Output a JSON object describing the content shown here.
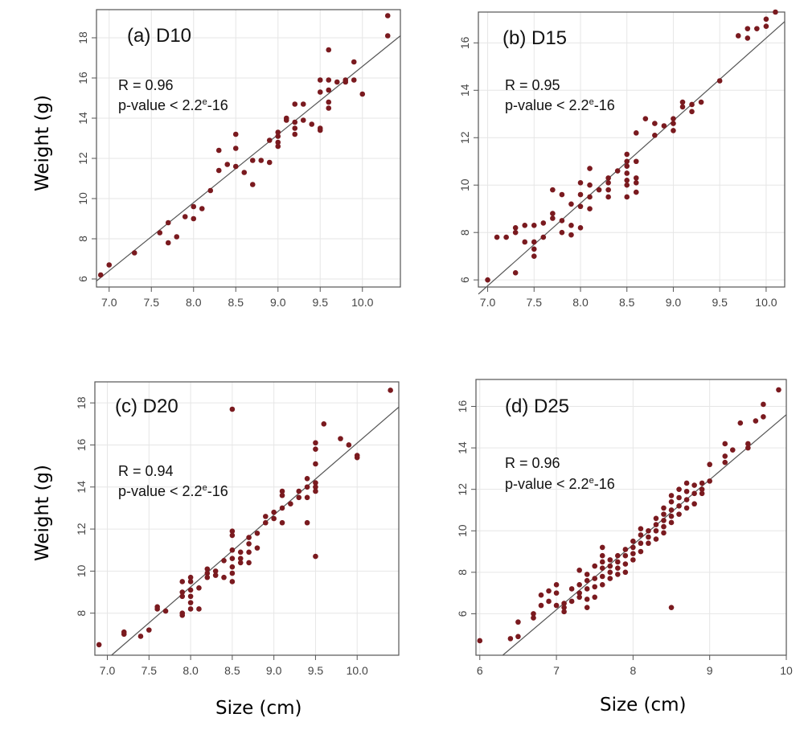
{
  "figure": {
    "ylabel": "Weight (g)",
    "xlabel": "Size (cm)"
  },
  "chart_data": [
    {
      "type": "scatter",
      "panel_label": "(a) D10",
      "stat_r": "R = 0.96",
      "stat_p_prefix": "p-value < 2.2",
      "stat_p_sup": "e",
      "stat_p_suffix": "-16",
      "xlim": [
        6.85,
        10.45
      ],
      "ylim": [
        5.6,
        19.4
      ],
      "xticks": [
        "7.0",
        "7.5",
        "8.0",
        "8.5",
        "9.0",
        "9.5",
        "10.0"
      ],
      "xtick_values": [
        7.0,
        7.5,
        8.0,
        8.5,
        9.0,
        9.5,
        10.0
      ],
      "yticks": [
        "6",
        "8",
        "10",
        "12",
        "14",
        "16",
        "18"
      ],
      "ytick_values": [
        6,
        8,
        10,
        12,
        14,
        16,
        18
      ],
      "fit_line": [
        [
          6.85,
          5.9
        ],
        [
          10.45,
          18.1
        ]
      ],
      "points": [
        [
          6.9,
          6.2
        ],
        [
          7.0,
          6.7
        ],
        [
          7.3,
          7.3
        ],
        [
          7.6,
          8.3
        ],
        [
          7.7,
          7.8
        ],
        [
          7.7,
          8.8
        ],
        [
          7.8,
          8.1
        ],
        [
          7.9,
          9.1
        ],
        [
          8.0,
          9.0
        ],
        [
          8.0,
          9.6
        ],
        [
          8.1,
          9.5
        ],
        [
          8.2,
          10.4
        ],
        [
          8.3,
          11.4
        ],
        [
          8.3,
          12.4
        ],
        [
          8.4,
          11.7
        ],
        [
          8.5,
          11.6
        ],
        [
          8.5,
          12.5
        ],
        [
          8.5,
          13.2
        ],
        [
          8.6,
          11.3
        ],
        [
          8.7,
          10.7
        ],
        [
          8.7,
          11.9
        ],
        [
          8.8,
          11.9
        ],
        [
          8.9,
          11.8
        ],
        [
          8.9,
          12.9
        ],
        [
          9.0,
          12.6
        ],
        [
          9.0,
          12.8
        ],
        [
          9.0,
          13.1
        ],
        [
          9.0,
          13.3
        ],
        [
          9.1,
          13.9
        ],
        [
          9.1,
          14.0
        ],
        [
          9.2,
          13.2
        ],
        [
          9.2,
          13.5
        ],
        [
          9.2,
          13.8
        ],
        [
          9.2,
          14.7
        ],
        [
          9.3,
          13.9
        ],
        [
          9.3,
          14.7
        ],
        [
          9.4,
          13.7
        ],
        [
          9.5,
          13.4
        ],
        [
          9.5,
          13.5
        ],
        [
          9.5,
          15.3
        ],
        [
          9.5,
          15.9
        ],
        [
          9.6,
          14.5
        ],
        [
          9.6,
          14.8
        ],
        [
          9.6,
          15.4
        ],
        [
          9.6,
          15.9
        ],
        [
          9.6,
          17.4
        ],
        [
          9.7,
          15.8
        ],
        [
          9.8,
          15.8
        ],
        [
          9.8,
          15.9
        ],
        [
          9.9,
          15.9
        ],
        [
          9.9,
          16.8
        ],
        [
          10.0,
          15.2
        ],
        [
          10.3,
          18.1
        ],
        [
          10.3,
          19.1
        ]
      ]
    },
    {
      "type": "scatter",
      "panel_label": "(b) D15",
      "stat_r": "R = 0.95",
      "stat_p_prefix": "p-value < 2.2",
      "stat_p_sup": "e",
      "stat_p_suffix": "-16",
      "xlim": [
        6.9,
        10.2
      ],
      "ylim": [
        5.7,
        17.3
      ],
      "xticks": [
        "7.0",
        "7.5",
        "8.0",
        "8.5",
        "9.0",
        "9.5",
        "10.0"
      ],
      "xtick_values": [
        7.0,
        7.5,
        8.0,
        8.5,
        9.0,
        9.5,
        10.0
      ],
      "yticks": [
        "6",
        "8",
        "10",
        "12",
        "14",
        "16"
      ],
      "ytick_values": [
        6,
        8,
        10,
        12,
        14,
        16
      ],
      "fit_line": [
        [
          6.9,
          5.4
        ],
        [
          10.2,
          16.9
        ]
      ],
      "points": [
        [
          7.0,
          6.0
        ],
        [
          7.1,
          7.8
        ],
        [
          7.2,
          7.8
        ],
        [
          7.3,
          6.3
        ],
        [
          7.3,
          8.0
        ],
        [
          7.3,
          8.2
        ],
        [
          7.4,
          7.6
        ],
        [
          7.4,
          8.3
        ],
        [
          7.5,
          7.0
        ],
        [
          7.5,
          7.3
        ],
        [
          7.5,
          7.6
        ],
        [
          7.5,
          8.3
        ],
        [
          7.6,
          7.8
        ],
        [
          7.6,
          8.4
        ],
        [
          7.7,
          8.6
        ],
        [
          7.7,
          8.8
        ],
        [
          7.7,
          9.8
        ],
        [
          7.8,
          8.0
        ],
        [
          7.8,
          8.5
        ],
        [
          7.8,
          9.6
        ],
        [
          7.9,
          7.9
        ],
        [
          7.9,
          8.3
        ],
        [
          7.9,
          9.2
        ],
        [
          8.0,
          8.2
        ],
        [
          8.0,
          9.1
        ],
        [
          8.0,
          9.6
        ],
        [
          8.0,
          10.1
        ],
        [
          8.1,
          9.0
        ],
        [
          8.1,
          9.5
        ],
        [
          8.1,
          10.0
        ],
        [
          8.1,
          10.7
        ],
        [
          8.2,
          9.8
        ],
        [
          8.3,
          9.5
        ],
        [
          8.3,
          9.8
        ],
        [
          8.3,
          10.1
        ],
        [
          8.3,
          10.3
        ],
        [
          8.4,
          10.6
        ],
        [
          8.5,
          9.5
        ],
        [
          8.5,
          10.0
        ],
        [
          8.5,
          10.2
        ],
        [
          8.5,
          10.5
        ],
        [
          8.5,
          10.8
        ],
        [
          8.5,
          11.0
        ],
        [
          8.5,
          11.3
        ],
        [
          8.6,
          9.7
        ],
        [
          8.6,
          10.1
        ],
        [
          8.6,
          10.3
        ],
        [
          8.6,
          11.0
        ],
        [
          8.6,
          12.2
        ],
        [
          8.7,
          12.8
        ],
        [
          8.8,
          12.1
        ],
        [
          8.8,
          12.6
        ],
        [
          8.9,
          12.5
        ],
        [
          9.0,
          12.3
        ],
        [
          9.0,
          12.6
        ],
        [
          9.0,
          12.8
        ],
        [
          9.1,
          13.3
        ],
        [
          9.1,
          13.5
        ],
        [
          9.2,
          13.1
        ],
        [
          9.2,
          13.4
        ],
        [
          9.3,
          13.5
        ],
        [
          9.5,
          14.4
        ],
        [
          9.7,
          16.3
        ],
        [
          9.8,
          16.2
        ],
        [
          9.8,
          16.6
        ],
        [
          9.9,
          16.6
        ],
        [
          10.0,
          16.7
        ],
        [
          10.0,
          17.0
        ],
        [
          10.1,
          17.3
        ]
      ]
    },
    {
      "type": "scatter",
      "panel_label": "(c) D20",
      "stat_r": "R = 0.94",
      "stat_p_prefix": "p-value < 2.2",
      "stat_p_sup": "e",
      "stat_p_suffix": "-16",
      "xlim": [
        6.85,
        10.5
      ],
      "ylim": [
        6.0,
        19.0
      ],
      "xticks": [
        "7.0",
        "7.5",
        "8.0",
        "8.5",
        "9.0",
        "9.5",
        "10.0"
      ],
      "xtick_values": [
        7.0,
        7.5,
        8.0,
        8.5,
        9.0,
        9.5,
        10.0
      ],
      "yticks": [
        "8",
        "10",
        "12",
        "14",
        "16",
        "18"
      ],
      "ytick_values": [
        8,
        10,
        12,
        14,
        16,
        18
      ],
      "fit_line": [
        [
          7.05,
          6.0
        ],
        [
          10.5,
          17.8
        ]
      ],
      "points": [
        [
          6.9,
          6.5
        ],
        [
          7.2,
          7.0
        ],
        [
          7.2,
          7.1
        ],
        [
          7.4,
          6.9
        ],
        [
          7.5,
          7.2
        ],
        [
          7.6,
          8.2
        ],
        [
          7.6,
          8.3
        ],
        [
          7.7,
          8.1
        ],
        [
          7.9,
          7.9
        ],
        [
          7.9,
          8.0
        ],
        [
          7.9,
          8.8
        ],
        [
          7.9,
          9.0
        ],
        [
          7.9,
          9.5
        ],
        [
          8.0,
          8.2
        ],
        [
          8.0,
          8.5
        ],
        [
          8.0,
          8.8
        ],
        [
          8.0,
          9.1
        ],
        [
          8.0,
          9.5
        ],
        [
          8.0,
          9.7
        ],
        [
          8.1,
          8.2
        ],
        [
          8.1,
          9.2
        ],
        [
          8.2,
          9.7
        ],
        [
          8.2,
          9.9
        ],
        [
          8.2,
          10.1
        ],
        [
          8.3,
          9.8
        ],
        [
          8.3,
          10.0
        ],
        [
          8.4,
          9.7
        ],
        [
          8.4,
          10.5
        ],
        [
          8.5,
          9.5
        ],
        [
          8.5,
          9.9
        ],
        [
          8.5,
          10.2
        ],
        [
          8.5,
          10.6
        ],
        [
          8.5,
          11.0
        ],
        [
          8.5,
          11.7
        ],
        [
          8.5,
          11.9
        ],
        [
          8.5,
          17.7
        ],
        [
          8.6,
          10.4
        ],
        [
          8.6,
          10.6
        ],
        [
          8.6,
          10.9
        ],
        [
          8.7,
          10.4
        ],
        [
          8.7,
          10.9
        ],
        [
          8.7,
          11.3
        ],
        [
          8.7,
          11.6
        ],
        [
          8.8,
          11.1
        ],
        [
          8.8,
          11.8
        ],
        [
          8.9,
          12.3
        ],
        [
          8.9,
          12.6
        ],
        [
          9.0,
          12.5
        ],
        [
          9.0,
          12.8
        ],
        [
          9.1,
          12.3
        ],
        [
          9.1,
          13.0
        ],
        [
          9.1,
          13.6
        ],
        [
          9.1,
          13.8
        ],
        [
          9.2,
          13.2
        ],
        [
          9.3,
          13.5
        ],
        [
          9.3,
          13.8
        ],
        [
          9.4,
          12.3
        ],
        [
          9.4,
          13.5
        ],
        [
          9.4,
          14.0
        ],
        [
          9.4,
          14.4
        ],
        [
          9.5,
          10.7
        ],
        [
          9.5,
          13.8
        ],
        [
          9.5,
          14.0
        ],
        [
          9.5,
          14.2
        ],
        [
          9.5,
          15.1
        ],
        [
          9.5,
          15.8
        ],
        [
          9.5,
          16.1
        ],
        [
          9.6,
          17.0
        ],
        [
          9.8,
          16.3
        ],
        [
          9.9,
          16.0
        ],
        [
          10.0,
          15.4
        ],
        [
          10.0,
          15.5
        ],
        [
          10.4,
          18.6
        ]
      ]
    },
    {
      "type": "scatter",
      "panel_label": "(d) D25",
      "stat_r": "R = 0.96",
      "stat_p_prefix": "p-value < 2.2",
      "stat_p_sup": "e",
      "stat_p_suffix": "-16",
      "xlim": [
        5.95,
        10.0
      ],
      "ylim": [
        4.0,
        17.3
      ],
      "xticks": [
        "6",
        "7",
        "8",
        "9",
        "10"
      ],
      "xtick_values": [
        6,
        7,
        8,
        9,
        10
      ],
      "yticks": [
        "6",
        "8",
        "10",
        "12",
        "14",
        "16"
      ],
      "ytick_values": [
        6,
        8,
        10,
        12,
        14,
        16
      ],
      "fit_line": [
        [
          6.3,
          4.0
        ],
        [
          10.0,
          15.6
        ]
      ],
      "points": [
        [
          6.0,
          4.7
        ],
        [
          6.4,
          4.8
        ],
        [
          6.5,
          4.9
        ],
        [
          6.5,
          5.6
        ],
        [
          6.7,
          5.8
        ],
        [
          6.7,
          6.0
        ],
        [
          6.8,
          6.4
        ],
        [
          6.8,
          6.9
        ],
        [
          6.9,
          6.6
        ],
        [
          6.9,
          7.1
        ],
        [
          7.0,
          6.4
        ],
        [
          7.0,
          7.0
        ],
        [
          7.0,
          7.4
        ],
        [
          7.1,
          6.1
        ],
        [
          7.1,
          6.3
        ],
        [
          7.1,
          6.5
        ],
        [
          7.2,
          6.6
        ],
        [
          7.2,
          7.2
        ],
        [
          7.3,
          6.8
        ],
        [
          7.3,
          7.0
        ],
        [
          7.3,
          7.4
        ],
        [
          7.3,
          8.1
        ],
        [
          7.4,
          6.3
        ],
        [
          7.4,
          6.7
        ],
        [
          7.4,
          7.2
        ],
        [
          7.4,
          7.6
        ],
        [
          7.4,
          7.9
        ],
        [
          7.5,
          6.8
        ],
        [
          7.5,
          7.3
        ],
        [
          7.5,
          7.7
        ],
        [
          7.5,
          8.3
        ],
        [
          7.6,
          7.4
        ],
        [
          7.6,
          7.8
        ],
        [
          7.6,
          8.2
        ],
        [
          7.6,
          8.5
        ],
        [
          7.6,
          8.8
        ],
        [
          7.6,
          9.2
        ],
        [
          7.7,
          7.7
        ],
        [
          7.7,
          8.0
        ],
        [
          7.7,
          8.3
        ],
        [
          7.7,
          8.6
        ],
        [
          7.8,
          7.9
        ],
        [
          7.8,
          8.2
        ],
        [
          7.8,
          8.5
        ],
        [
          7.8,
          8.8
        ],
        [
          7.9,
          8.0
        ],
        [
          7.9,
          8.4
        ],
        [
          7.9,
          8.8
        ],
        [
          7.9,
          9.1
        ],
        [
          8.0,
          8.6
        ],
        [
          8.0,
          8.9
        ],
        [
          8.0,
          9.2
        ],
        [
          8.0,
          9.5
        ],
        [
          8.1,
          9.0
        ],
        [
          8.1,
          9.4
        ],
        [
          8.1,
          9.8
        ],
        [
          8.1,
          10.1
        ],
        [
          8.2,
          9.4
        ],
        [
          8.2,
          9.7
        ],
        [
          8.2,
          10.0
        ],
        [
          8.3,
          9.6
        ],
        [
          8.3,
          10.0
        ],
        [
          8.3,
          10.3
        ],
        [
          8.3,
          10.6
        ],
        [
          8.4,
          9.9
        ],
        [
          8.4,
          10.2
        ],
        [
          8.4,
          10.5
        ],
        [
          8.4,
          10.8
        ],
        [
          8.4,
          11.1
        ],
        [
          8.5,
          6.3
        ],
        [
          8.5,
          10.4
        ],
        [
          8.5,
          10.7
        ],
        [
          8.5,
          11.0
        ],
        [
          8.5,
          11.4
        ],
        [
          8.5,
          11.7
        ],
        [
          8.6,
          10.8
        ],
        [
          8.6,
          11.2
        ],
        [
          8.6,
          11.6
        ],
        [
          8.6,
          12.0
        ],
        [
          8.7,
          11.1
        ],
        [
          8.7,
          11.5
        ],
        [
          8.7,
          11.9
        ],
        [
          8.7,
          12.3
        ],
        [
          8.8,
          11.3
        ],
        [
          8.8,
          11.8
        ],
        [
          8.8,
          12.2
        ],
        [
          8.9,
          11.8
        ],
        [
          8.9,
          12.0
        ],
        [
          8.9,
          12.3
        ],
        [
          9.0,
          12.4
        ],
        [
          9.0,
          13.2
        ],
        [
          9.2,
          13.3
        ],
        [
          9.2,
          13.6
        ],
        [
          9.2,
          14.2
        ],
        [
          9.3,
          13.9
        ],
        [
          9.4,
          15.2
        ],
        [
          9.5,
          14.0
        ],
        [
          9.5,
          14.2
        ],
        [
          9.6,
          15.3
        ],
        [
          9.7,
          15.5
        ],
        [
          9.7,
          16.1
        ],
        [
          9.9,
          16.8
        ]
      ]
    }
  ]
}
